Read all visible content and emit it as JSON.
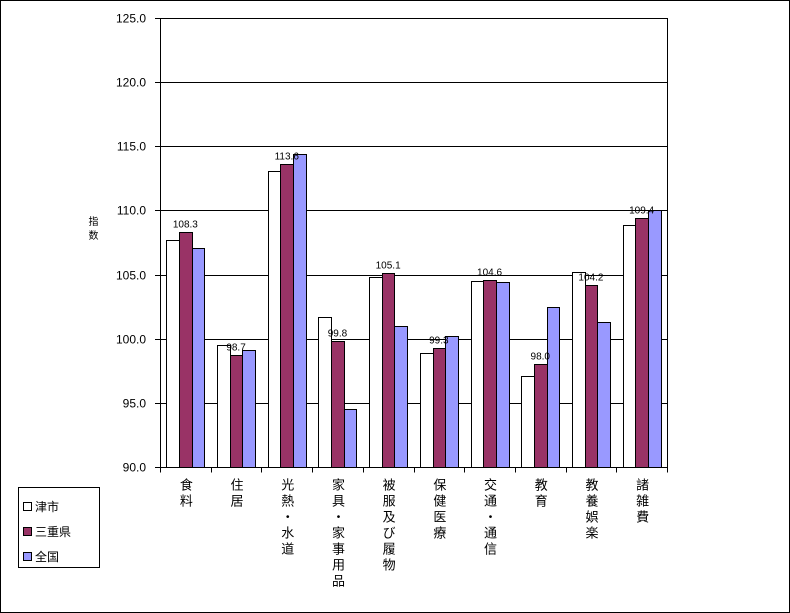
{
  "chart_data": {
    "type": "bar",
    "title": "",
    "xlabel": "",
    "ylabel": "指数",
    "ylim": [
      90,
      125
    ],
    "yticks": [
      "90.0",
      "95.0",
      "100.0",
      "105.0",
      "110.0",
      "115.0",
      "120.0",
      "125.0"
    ],
    "grid": true,
    "legend": "bottom-left",
    "categories": [
      "食料",
      "住居",
      "光熱・水道",
      "家具・家事用品",
      "被服及び履物",
      "保健医療",
      "交通・通信",
      "教育",
      "教養娯楽",
      "諸雑費"
    ],
    "series": [
      {
        "name": "津市",
        "color": "#FFFFFF",
        "data_labels": false,
        "values": [
          107.7,
          99.5,
          113.1,
          101.7,
          104.8,
          98.9,
          104.5,
          97.1,
          105.2,
          108.9
        ]
      },
      {
        "name": "三重県",
        "color": "#993366",
        "data_labels": true,
        "values": [
          108.3,
          98.7,
          113.6,
          99.8,
          105.1,
          99.3,
          104.6,
          98.0,
          104.2,
          109.4
        ]
      },
      {
        "name": "全国",
        "color": "#9999FF",
        "data_labels": false,
        "values": [
          107.1,
          99.1,
          114.4,
          94.5,
          101.0,
          100.2,
          104.4,
          102.5,
          101.3,
          110.0
        ]
      }
    ]
  }
}
